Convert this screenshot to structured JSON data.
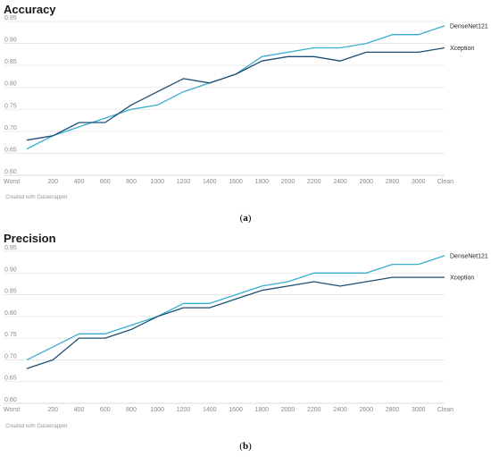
{
  "chart_data": [
    {
      "type": "line",
      "title": "Accuracy",
      "credit": "Created with Datawrapper",
      "caption": {
        "open": "(",
        "letter": "a",
        "close": ")"
      },
      "categories": [
        "Worst",
        "200",
        "400",
        "600",
        "800",
        "1000",
        "1200",
        "1400",
        "1600",
        "1800",
        "2000",
        "2200",
        "2400",
        "2600",
        "2800",
        "3000",
        "Clean"
      ],
      "yticks": [
        "0.60",
        "0.65",
        "0.70",
        "0.75",
        "0.80",
        "0.85",
        "0.90",
        "0.95"
      ],
      "ylim": [
        0.6,
        0.95
      ],
      "series": [
        {
          "name": "DenseNet121",
          "color": "#3aaed0",
          "values": [
            0.66,
            0.69,
            0.71,
            0.73,
            0.75,
            0.76,
            0.79,
            0.81,
            0.83,
            0.87,
            0.88,
            0.89,
            0.89,
            0.9,
            0.92,
            0.92,
            0.94
          ]
        },
        {
          "name": "Xception",
          "color": "#1d4e72",
          "values": [
            0.68,
            0.69,
            0.72,
            0.72,
            0.76,
            0.79,
            0.82,
            0.81,
            0.83,
            0.86,
            0.87,
            0.87,
            0.86,
            0.88,
            0.88,
            0.88,
            0.89
          ]
        }
      ]
    },
    {
      "type": "line",
      "title": "Precision",
      "credit": "Created with Datawrapper",
      "caption": {
        "open": "(",
        "letter": "b",
        "close": ")"
      },
      "categories": [
        "Worst",
        "200",
        "400",
        "600",
        "800",
        "1000",
        "1200",
        "1400",
        "1600",
        "1800",
        "2000",
        "2200",
        "2400",
        "2600",
        "2800",
        "3000",
        "Clean"
      ],
      "yticks": [
        "0.60",
        "0.65",
        "0.70",
        "0.75",
        "0.80",
        "0.85",
        "0.90",
        "0.95"
      ],
      "ylim": [
        0.6,
        0.95
      ],
      "series": [
        {
          "name": "DenseNet121",
          "color": "#3aaed0",
          "values": [
            0.7,
            0.73,
            0.76,
            0.76,
            0.78,
            0.8,
            0.83,
            0.83,
            0.85,
            0.87,
            0.88,
            0.9,
            0.9,
            0.9,
            0.92,
            0.92,
            0.94
          ]
        },
        {
          "name": "Xception",
          "color": "#1d4e72",
          "values": [
            0.68,
            0.7,
            0.75,
            0.75,
            0.77,
            0.8,
            0.82,
            0.82,
            0.84,
            0.86,
            0.87,
            0.88,
            0.87,
            0.88,
            0.89,
            0.89,
            0.89
          ]
        }
      ]
    }
  ]
}
